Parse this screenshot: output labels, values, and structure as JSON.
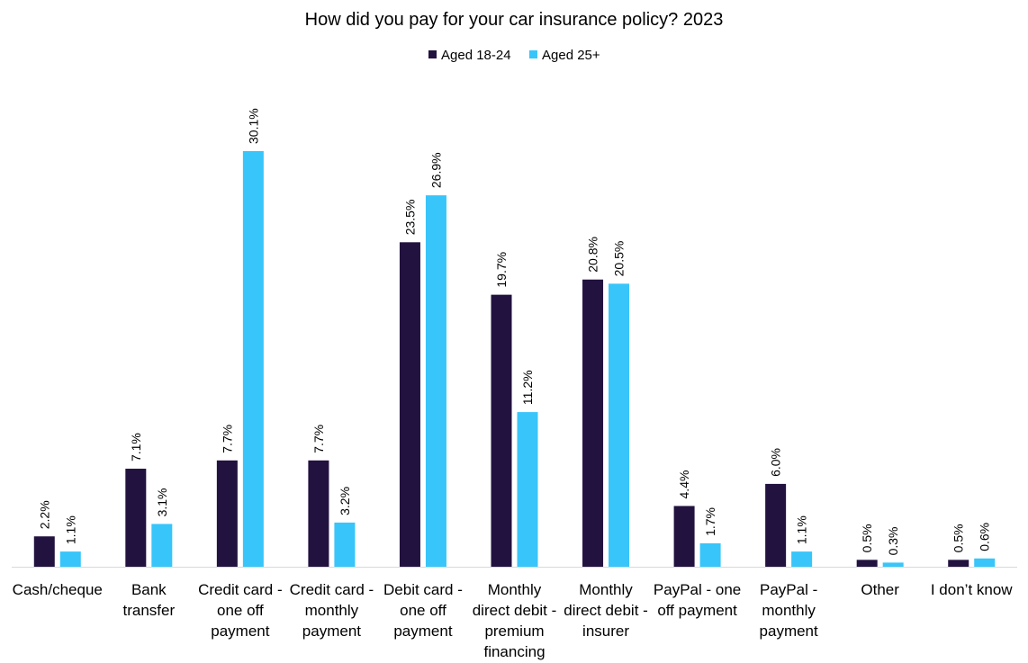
{
  "chart_data": {
    "type": "bar",
    "title": "How did you pay for your car insurance policy? 2023",
    "categories": [
      [
        "Cash/cheque"
      ],
      [
        "Bank",
        "transfer"
      ],
      [
        "Credit card -",
        "one off",
        "payment"
      ],
      [
        "Credit card -",
        "monthly",
        "payment"
      ],
      [
        "Debit card -",
        "one off",
        "payment"
      ],
      [
        "Monthly",
        "direct debit -",
        "premium",
        "financing"
      ],
      [
        "Monthly",
        "direct debit -",
        "insurer"
      ],
      [
        "PayPal - one",
        "off payment"
      ],
      [
        "PayPal -",
        "monthly",
        "payment"
      ],
      [
        "Other"
      ],
      [
        "I don’t know"
      ]
    ],
    "series": [
      {
        "name": "Aged 18-24",
        "color": "#22123f",
        "values": [
          2.2,
          7.1,
          7.7,
          7.7,
          23.5,
          19.7,
          20.8,
          4.4,
          6.0,
          0.5,
          0.5
        ],
        "labels": [
          "2.2%",
          "7.1%",
          "7.7%",
          "7.7%",
          "23.5%",
          "19.7%",
          "20.8%",
          "4.4%",
          "6.0%",
          "0.5%",
          "0.5%"
        ]
      },
      {
        "name": "Aged 25+",
        "color": "#38c5fa",
        "values": [
          1.1,
          3.1,
          30.1,
          3.2,
          26.9,
          11.2,
          20.5,
          1.7,
          1.1,
          0.3,
          0.6
        ],
        "labels": [
          "1.1%",
          "3.1%",
          "30.1%",
          "3.2%",
          "26.9%",
          "11.2%",
          "20.5%",
          "1.7%",
          "1.1%",
          "0.3%",
          "0.6%"
        ]
      }
    ],
    "legend_position": "top-center",
    "grid": false,
    "ylim": [
      0,
      30.1
    ]
  }
}
